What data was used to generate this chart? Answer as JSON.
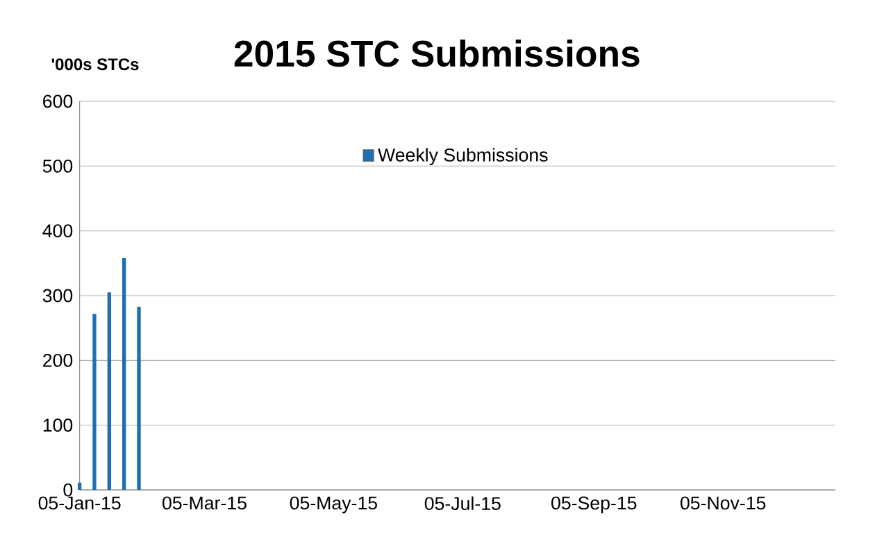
{
  "chart_data": {
    "type": "bar",
    "title": "2015 STC Submissions",
    "ylabel": "'000s STCs",
    "x": [
      "2015-01-05",
      "2015-01-12",
      "2015-01-19",
      "2015-01-26",
      "2015-02-02"
    ],
    "series": [
      {
        "name": "Weekly Submissions",
        "color": "#1f6fb4",
        "values": [
          11,
          272,
          305,
          358,
          283
        ]
      }
    ],
    "xlim": [
      "2015-01-05",
      "2015-12-28"
    ],
    "xticks": [
      {
        "value": "2015-01-05",
        "label": "05-Jan-15"
      },
      {
        "value": "2015-03-05",
        "label": "05-Mar-15"
      },
      {
        "value": "2015-05-05",
        "label": "05-May-15"
      },
      {
        "value": "2015-07-05",
        "label": "05-Jul-15"
      },
      {
        "value": "2015-09-05",
        "label": "05-Sep-15"
      },
      {
        "value": "2015-11-05",
        "label": "05-Nov-15"
      }
    ],
    "ylim": [
      0,
      600
    ],
    "yticks": [
      0,
      100,
      200,
      300,
      400,
      500,
      600
    ],
    "grid": "y",
    "legend": "top"
  }
}
